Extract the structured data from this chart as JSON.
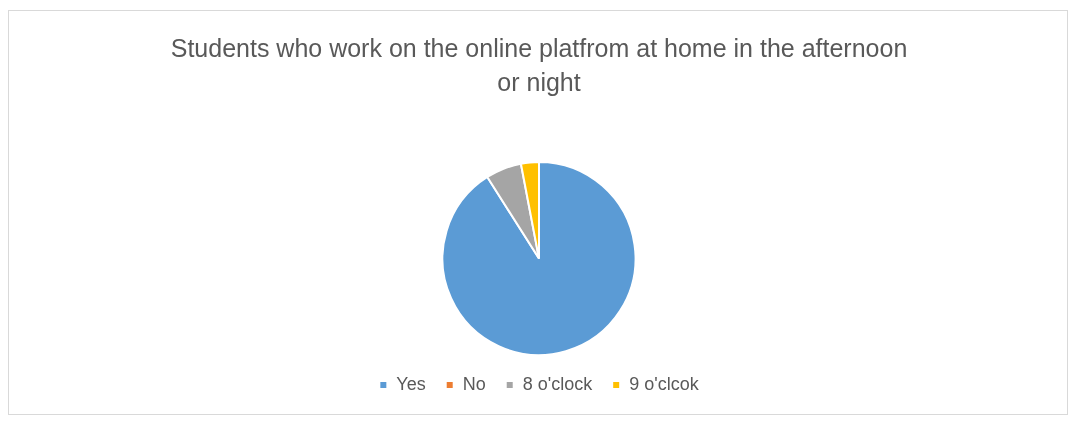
{
  "chart_data": {
    "type": "pie",
    "title": "Students who work on the online platfrom at home in the afternoon or night",
    "categories": [
      "Yes",
      "No",
      "8 o'clock",
      "9 o'clcok"
    ],
    "values": [
      91,
      0,
      6,
      3
    ],
    "colors": [
      "#5b9bd5",
      "#ed7d31",
      "#a5a5a5",
      "#ffc000"
    ],
    "legend": "bottom"
  }
}
